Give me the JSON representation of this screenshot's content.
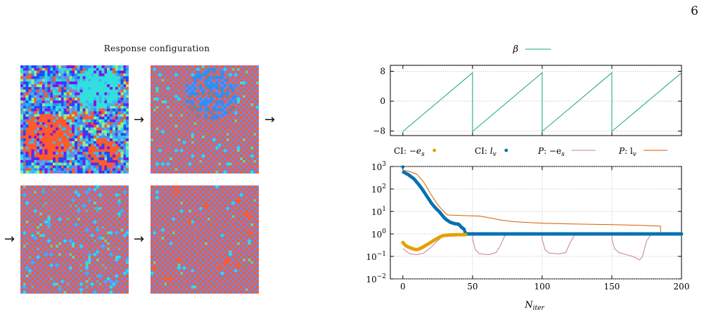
{
  "page_number": "6",
  "response_configuration": {
    "title": "Response configuration",
    "arrow": "→",
    "panels": [
      {
        "name": "lattice-panel-1"
      },
      {
        "name": "lattice-panel-2"
      },
      {
        "name": "lattice-panel-3"
      },
      {
        "name": "lattice-panel-4"
      }
    ],
    "palette": [
      "#ff5a2c",
      "#6e86e6",
      "#2f8ff0",
      "#32dede",
      "#8ef08a",
      "#1a4dff",
      "#7a1ae6",
      "#3fb5f0"
    ]
  },
  "colors": {
    "beta": "#13a57e",
    "ci_es": "#e69f00",
    "ci_lv": "#0072b2",
    "p_es": "#cc79a7",
    "p_lv": "#d55e00"
  },
  "chart_data": [
    {
      "type": "line",
      "legend": [
        {
          "label": "β",
          "series": "beta"
        }
      ],
      "legend_position": "top-center",
      "x": [
        0,
        200
      ],
      "xlim": [
        -9,
        200
      ],
      "ylim": [
        -9.2,
        9.6
      ],
      "yticks": [
        "8",
        "0",
        "−8"
      ],
      "ytick_values": [
        8,
        0,
        -8
      ],
      "grid": true,
      "series": [
        {
          "id": "beta",
          "values_description_free": true,
          "points": [
            [
              0,
              -8.1
            ],
            [
              50,
              7.6
            ],
            [
              50,
              -8.1
            ],
            [
              100,
              7.6
            ],
            [
              100,
              -8.1
            ],
            [
              150,
              7.6
            ],
            [
              150,
              -8.1
            ],
            [
              200,
              7.6
            ]
          ]
        }
      ]
    },
    {
      "type": "scatter",
      "log_y": true,
      "xlim": [
        -9,
        200
      ],
      "ylim": [
        0.01,
        1000
      ],
      "xlabel": "N",
      "xlabel_sub": "iter",
      "xticks": [
        "0",
        "50",
        "100",
        "150",
        "200"
      ],
      "xtick_values": [
        0,
        50,
        100,
        150,
        200
      ],
      "yticks": [
        {
          "base": "10",
          "exp": "3",
          "value": 1000
        },
        {
          "base": "10",
          "exp": "2",
          "value": 100
        },
        {
          "base": "10",
          "exp": "1",
          "value": 10
        },
        {
          "base": "10",
          "exp": "0",
          "value": 1
        },
        {
          "base": "10",
          "exp": "−1",
          "value": 0.1
        },
        {
          "base": "10",
          "exp": "−2",
          "value": 0.01
        }
      ],
      "grid": true,
      "legend_position": "top",
      "legend": [
        {
          "prefix": "CI: ",
          "math": "−e",
          "sub": "s",
          "series": "ci_es",
          "marker": "dot"
        },
        {
          "prefix": "CI: ",
          "math": "l",
          "sub": "v",
          "series": "ci_lv",
          "marker": "dot"
        },
        {
          "prefix": "",
          "math": "P",
          "rest": ": −e",
          "sub": "s",
          "series": "p_es",
          "marker": "line"
        },
        {
          "prefix": "",
          "math": "P",
          "rest": ": l",
          "sub": "v",
          "series": "p_lv",
          "marker": "line"
        }
      ],
      "series": [
        {
          "id": "ci_lv",
          "kind": "dot",
          "points": [
            [
              0,
              950
            ],
            [
              0.5,
              560
            ],
            [
              2,
              500
            ],
            [
              4,
              430
            ],
            [
              6,
              350
            ],
            [
              8,
              280
            ],
            [
              10,
              200
            ],
            [
              12,
              140
            ],
            [
              14,
              95
            ],
            [
              16,
              62
            ],
            [
              18,
              40
            ],
            [
              20,
              26
            ],
            [
              22,
              18
            ],
            [
              24,
              13
            ],
            [
              26,
              10
            ],
            [
              28,
              7
            ],
            [
              30,
              5
            ],
            [
              32,
              4
            ],
            [
              34,
              3.3
            ],
            [
              36,
              3
            ],
            [
              38,
              2.8
            ],
            [
              40,
              2.7
            ],
            [
              42,
              2
            ],
            [
              44,
              1.6
            ],
            [
              45,
              1.0
            ],
            [
              200,
              1.0
            ]
          ]
        },
        {
          "id": "ci_es",
          "kind": "dot",
          "points": [
            [
              0,
              0.42
            ],
            [
              2,
              0.3
            ],
            [
              4,
              0.26
            ],
            [
              6,
              0.23
            ],
            [
              8,
              0.21
            ],
            [
              10,
              0.2
            ],
            [
              12,
              0.22
            ],
            [
              14,
              0.25
            ],
            [
              16,
              0.3
            ],
            [
              18,
              0.35
            ],
            [
              20,
              0.42
            ],
            [
              22,
              0.5
            ],
            [
              24,
              0.6
            ],
            [
              26,
              0.7
            ],
            [
              28,
              0.8
            ],
            [
              30,
              0.86
            ],
            [
              34,
              0.9
            ],
            [
              40,
              0.92
            ],
            [
              45,
              0.93
            ]
          ]
        },
        {
          "id": "p_lv",
          "kind": "line",
          "points": [
            [
              0,
              700
            ],
            [
              5,
              600
            ],
            [
              10,
              450
            ],
            [
              15,
              200
            ],
            [
              20,
              60
            ],
            [
              25,
              20
            ],
            [
              30,
              9
            ],
            [
              32,
              7
            ],
            [
              45,
              6.5
            ],
            [
              55,
              6.2
            ],
            [
              60,
              5.5
            ],
            [
              70,
              4.2
            ],
            [
              80,
              3.5
            ],
            [
              90,
              3.2
            ],
            [
              100,
              3
            ],
            [
              120,
              2.8
            ],
            [
              150,
              2.6
            ],
            [
              170,
              2.4
            ],
            [
              185,
              2.2
            ],
            [
              185,
              1.0
            ],
            [
              200,
              1.0
            ]
          ]
        },
        {
          "id": "p_es",
          "kind": "line",
          "points": [
            [
              0,
              0.22
            ],
            [
              5,
              0.13
            ],
            [
              10,
              0.12
            ],
            [
              15,
              0.14
            ],
            [
              20,
              0.25
            ],
            [
              25,
              0.5
            ],
            [
              30,
              0.9
            ],
            [
              50,
              0.95
            ],
            [
              50,
              0.6
            ],
            [
              52,
              0.2
            ],
            [
              55,
              0.13
            ],
            [
              62,
              0.12
            ],
            [
              67,
              0.15
            ],
            [
              70,
              0.3
            ],
            [
              73,
              0.8
            ],
            [
              75,
              0.93
            ],
            [
              100,
              0.95
            ],
            [
              100,
              0.6
            ],
            [
              102,
              0.2
            ],
            [
              105,
              0.14
            ],
            [
              112,
              0.13
            ],
            [
              117,
              0.15
            ],
            [
              120,
              0.4
            ],
            [
              123,
              0.85
            ],
            [
              125,
              0.93
            ],
            [
              150,
              0.95
            ],
            [
              150,
              0.6
            ],
            [
              152,
              0.22
            ],
            [
              155,
              0.15
            ],
            [
              165,
              0.1
            ],
            [
              170,
              0.07
            ],
            [
              172,
              0.1
            ],
            [
              175,
              0.5
            ],
            [
              178,
              0.9
            ],
            [
              180,
              0.93
            ],
            [
              200,
              0.95
            ]
          ]
        }
      ]
    }
  ]
}
